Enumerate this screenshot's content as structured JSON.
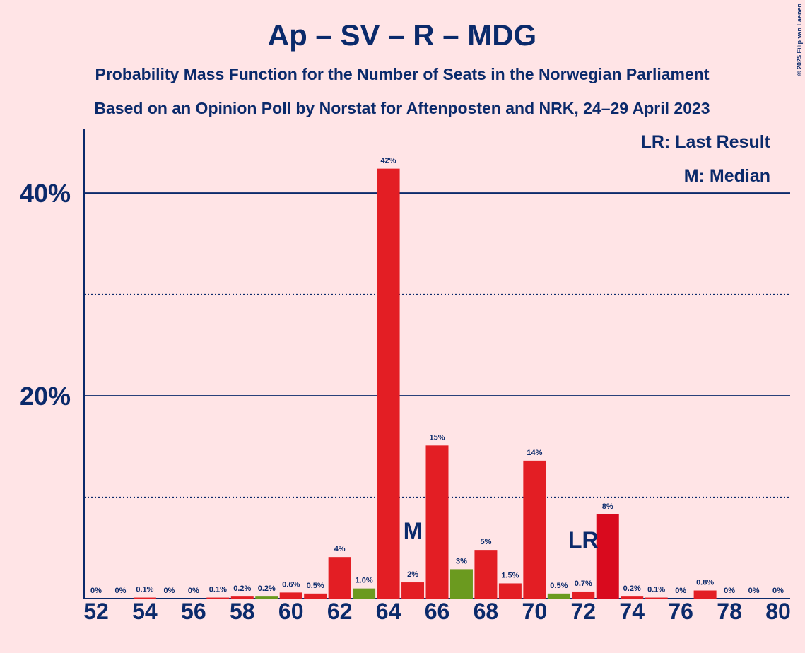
{
  "chart_data": {
    "type": "bar",
    "title": "Ap – SV – R – MDG",
    "subtitle": "Probability Mass Function for the Number of Seats in the Norwegian Parliament",
    "subtitle2": "Based on an Opinion Poll by Norstat for Aftenposten and NRK, 24–29 April 2023",
    "copyright": "© 2025 Filip van Laenen",
    "legend": [
      "LR: Last Result",
      "M: Median"
    ],
    "categories": [
      52,
      null,
      54,
      null,
      56,
      null,
      58,
      null,
      60,
      null,
      62,
      null,
      64,
      null,
      66,
      null,
      68,
      null,
      70,
      null,
      72,
      null,
      74,
      null,
      76,
      null,
      78,
      null,
      80
    ],
    "values": [
      0,
      0,
      0.1,
      0,
      0,
      0.1,
      0.2,
      0.2,
      0.6,
      0.5,
      4.1,
      1.0,
      42.4,
      1.6,
      15.1,
      2.9,
      4.8,
      1.5,
      13.6,
      0.5,
      0.7,
      8.3,
      0.2,
      0.1,
      0,
      0.8,
      0,
      0,
      0
    ],
    "value_labels": [
      "0%",
      "0%",
      "0.1%",
      "0%",
      "0%",
      "0.1%",
      "0.2%",
      "0.2%",
      "0.6%",
      "0.5%",
      "4%",
      "1.0%",
      "42%",
      "2%",
      "15%",
      "3%",
      "5%",
      "1.5%",
      "14%",
      "0.5%",
      "0.7%",
      "8%",
      "0.2%",
      "0.1%",
      "0%",
      "0.8%",
      "0%",
      "0%",
      "0%"
    ],
    "colors": [
      "#e31e24",
      "#e31e24",
      "#e31e24",
      "#e31e24",
      "#e31e24",
      "#e31e24",
      "#e31e24",
      "#6b9a1f",
      "#e31e24",
      "#e31e24",
      "#e31e24",
      "#6b9a1f",
      "#e31e24",
      "#e31e24",
      "#e31e24",
      "#6b9a1f",
      "#e31e24",
      "#e31e24",
      "#e31e24",
      "#6b9a1f",
      "#e31e24",
      "#d90a1e",
      "#e31e24",
      "#e31e24",
      "#e31e24",
      "#e31e24",
      "#e31e24",
      "#e31e24",
      "#e31e24"
    ],
    "annotations": [
      {
        "text": "M",
        "x": 65
      },
      {
        "text": "LR",
        "x": 72
      }
    ],
    "ylim": [
      0,
      46
    ],
    "yticks": [
      {
        "value": 20,
        "label": "20%"
      },
      {
        "value": 40,
        "label": "40%"
      }
    ],
    "minor_yticks": [
      10,
      30
    ],
    "grid": true
  }
}
